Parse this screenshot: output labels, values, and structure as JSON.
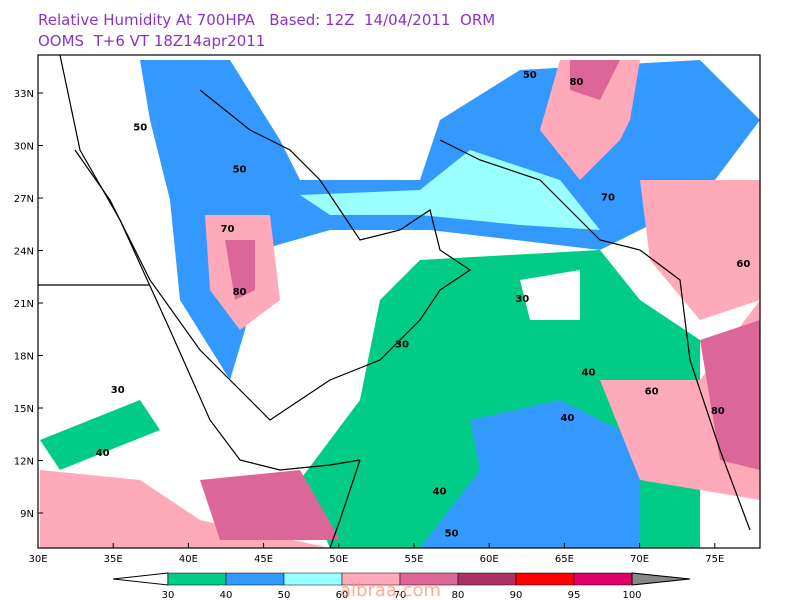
{
  "header": {
    "line1": "Relative Humidity At 700HPA   Based: 12Z  14/04/2011  ORM",
    "line2": "OOMS  T+6 VT 18Z14apr2011"
  },
  "map": {
    "lon_ticks": [
      {
        "value": 30,
        "label": "30E"
      },
      {
        "value": 35,
        "label": "35E"
      },
      {
        "value": 40,
        "label": "40E"
      },
      {
        "value": 45,
        "label": "45E"
      },
      {
        "value": 50,
        "label": "50E"
      },
      {
        "value": 55,
        "label": "55E"
      },
      {
        "value": 60,
        "label": "60E"
      },
      {
        "value": 65,
        "label": "65E"
      },
      {
        "value": 70,
        "label": "70E"
      },
      {
        "value": 75,
        "label": "75E"
      }
    ],
    "lat_ticks": [
      {
        "value": 9,
        "label": "9N"
      },
      {
        "value": 12,
        "label": "12N"
      },
      {
        "value": 15,
        "label": "15N"
      },
      {
        "value": 18,
        "label": "18N"
      },
      {
        "value": 21,
        "label": "21N"
      },
      {
        "value": 24,
        "label": "24N"
      },
      {
        "value": 27,
        "label": "27N"
      },
      {
        "value": 30,
        "label": "30N"
      },
      {
        "value": 33,
        "label": "33N"
      }
    ],
    "contour_labels": [
      {
        "label": "80",
        "lon": 43.4,
        "lat": 21.7
      },
      {
        "label": "70",
        "lon": 42.6,
        "lat": 25.3
      },
      {
        "label": "50",
        "lon": 36.8,
        "lat": 31.1
      },
      {
        "label": "50",
        "lon": 43.4,
        "lat": 28.7
      },
      {
        "label": "30",
        "lon": 62.2,
        "lat": 21.3
      },
      {
        "label": "40",
        "lon": 66.6,
        "lat": 17.1
      },
      {
        "label": "40",
        "lon": 65.2,
        "lat": 14.5
      },
      {
        "label": "40",
        "lon": 56.7,
        "lat": 10.3
      },
      {
        "label": "50",
        "lon": 57.5,
        "lat": 7.9
      },
      {
        "label": "60",
        "lon": 70.8,
        "lat": 16.0
      },
      {
        "label": "80",
        "lon": 75.2,
        "lat": 14.9
      },
      {
        "label": "30",
        "lon": 35.3,
        "lat": 16.1
      },
      {
        "label": "40",
        "lon": 34.3,
        "lat": 12.5
      },
      {
        "label": "30",
        "lon": 54.2,
        "lat": 18.7
      },
      {
        "label": "80",
        "lon": 65.8,
        "lat": 33.7
      },
      {
        "label": "70",
        "lon": 67.9,
        "lat": 27.1
      },
      {
        "label": "60",
        "lon": 76.9,
        "lat": 23.3
      },
      {
        "label": "50",
        "lon": 62.7,
        "lat": 34.1
      }
    ]
  },
  "legend": {
    "levels": [
      30,
      40,
      50,
      60,
      70,
      80,
      90,
      95,
      100
    ],
    "colors": [
      "#00cc88",
      "#3399ff",
      "#99ffff",
      "#ffaabb",
      "#dd6699",
      "#aa3366",
      "#ff0000",
      "#dd0066"
    ],
    "below_color": "#ffffff",
    "above_color": "#888888"
  },
  "watermark": "albraa.com"
}
